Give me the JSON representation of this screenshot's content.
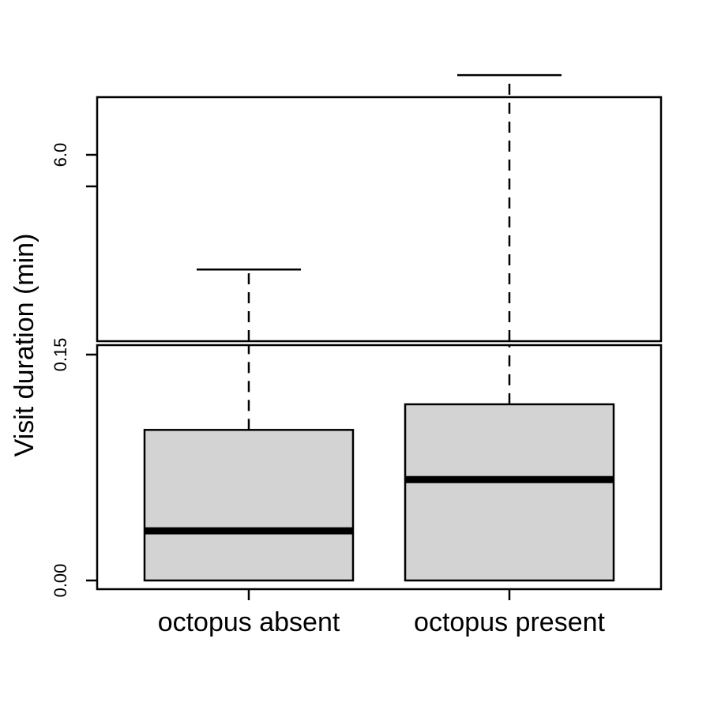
{
  "chart_data": {
    "type": "boxplot",
    "ylabel": "Visit duration (min)",
    "categories": [
      "octopus absent",
      "octopus present"
    ],
    "y_axis_break": {
      "lower_segment": [
        0.0,
        0.15
      ],
      "upper_segment": [
        0.15,
        9.0
      ]
    },
    "y_ticks": [
      {
        "value": 0.0,
        "label": "0.00"
      },
      {
        "value": 0.15,
        "label": "0.15"
      },
      {
        "value": 6.0,
        "label": "6.0"
      }
    ],
    "boxes": [
      {
        "category": "octopus absent",
        "min": 0.0,
        "q1": 0.0,
        "median": 0.033,
        "q3": 0.1,
        "whisker_high": 2.4
      },
      {
        "category": "octopus present",
        "min": 0.0,
        "q1": 0.0,
        "median": 0.067,
        "q3": 0.117,
        "whisker_high": 8.5
      }
    ],
    "box_fill": "#d3d3d3",
    "line_color": "#000000",
    "grid": false
  }
}
